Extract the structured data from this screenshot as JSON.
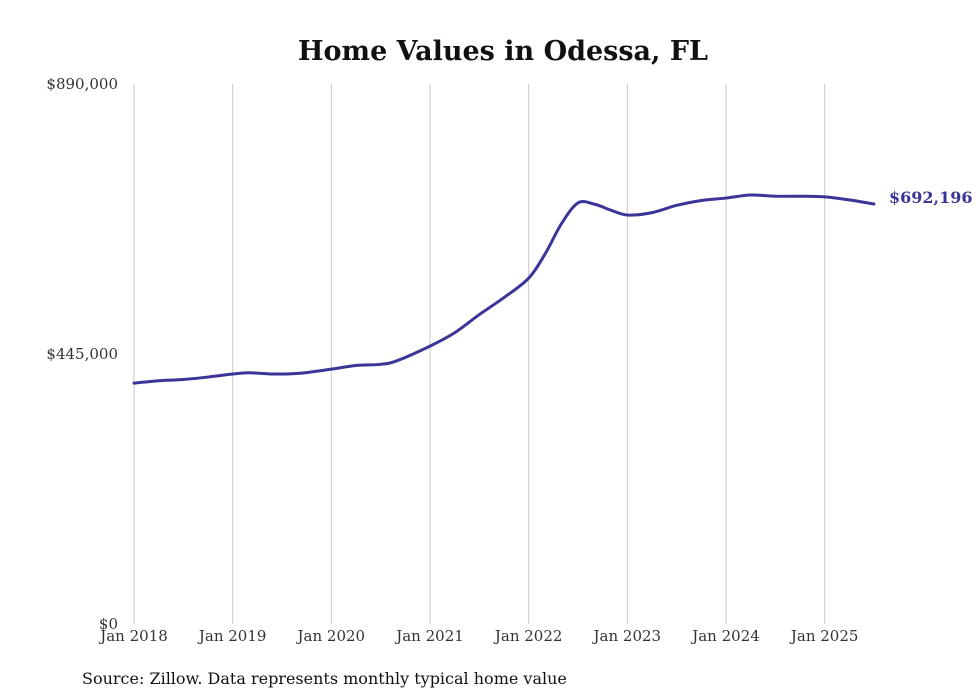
{
  "chart_data": {
    "type": "line",
    "title": "Home Values in Odessa, FL",
    "source": "Source: Zillow. Data represents monthly typical home value",
    "ylim": [
      0,
      890000
    ],
    "xlim": [
      "2018-01",
      "2025-07"
    ],
    "yticks": [
      {
        "value": 0,
        "label": "$0"
      },
      {
        "value": 445000,
        "label": "$445,000"
      },
      {
        "value": 890000,
        "label": "$890,000"
      }
    ],
    "xticks": [
      {
        "value": "2018-01",
        "label": "Jan 2018"
      },
      {
        "value": "2019-01",
        "label": "Jan 2019"
      },
      {
        "value": "2020-01",
        "label": "Jan 2020"
      },
      {
        "value": "2021-01",
        "label": "Jan 2021"
      },
      {
        "value": "2022-01",
        "label": "Jan 2022"
      },
      {
        "value": "2023-01",
        "label": "Jan 2023"
      },
      {
        "value": "2024-01",
        "label": "Jan 2024"
      },
      {
        "value": "2025-01",
        "label": "Jan 2025"
      }
    ],
    "grid": "vertical",
    "line_color": "#3b3597",
    "series": [
      {
        "end_label": "$692,196",
        "points": [
          {
            "x": "2018-01",
            "y": 397000
          },
          {
            "x": "2018-04",
            "y": 401000
          },
          {
            "x": "2018-07",
            "y": 403000
          },
          {
            "x": "2018-10",
            "y": 407000
          },
          {
            "x": "2019-01",
            "y": 412000
          },
          {
            "x": "2019-03",
            "y": 414000
          },
          {
            "x": "2019-06",
            "y": 412000
          },
          {
            "x": "2019-09",
            "y": 413000
          },
          {
            "x": "2020-01",
            "y": 420000
          },
          {
            "x": "2020-04",
            "y": 426000
          },
          {
            "x": "2020-07",
            "y": 428000
          },
          {
            "x": "2020-09",
            "y": 434000
          },
          {
            "x": "2021-01",
            "y": 458000
          },
          {
            "x": "2021-04",
            "y": 480000
          },
          {
            "x": "2021-07",
            "y": 510000
          },
          {
            "x": "2021-10",
            "y": 538000
          },
          {
            "x": "2022-01",
            "y": 570000
          },
          {
            "x": "2022-03",
            "y": 610000
          },
          {
            "x": "2022-05",
            "y": 660000
          },
          {
            "x": "2022-07",
            "y": 694000
          },
          {
            "x": "2022-09",
            "y": 692000
          },
          {
            "x": "2022-11",
            "y": 682000
          },
          {
            "x": "2023-01",
            "y": 674000
          },
          {
            "x": "2023-04",
            "y": 678000
          },
          {
            "x": "2023-07",
            "y": 690000
          },
          {
            "x": "2023-10",
            "y": 698000
          },
          {
            "x": "2024-01",
            "y": 702000
          },
          {
            "x": "2024-04",
            "y": 707000
          },
          {
            "x": "2024-07",
            "y": 705000
          },
          {
            "x": "2024-10",
            "y": 705000
          },
          {
            "x": "2025-01",
            "y": 704000
          },
          {
            "x": "2025-04",
            "y": 699000
          },
          {
            "x": "2025-07",
            "y": 692196
          }
        ]
      }
    ]
  }
}
